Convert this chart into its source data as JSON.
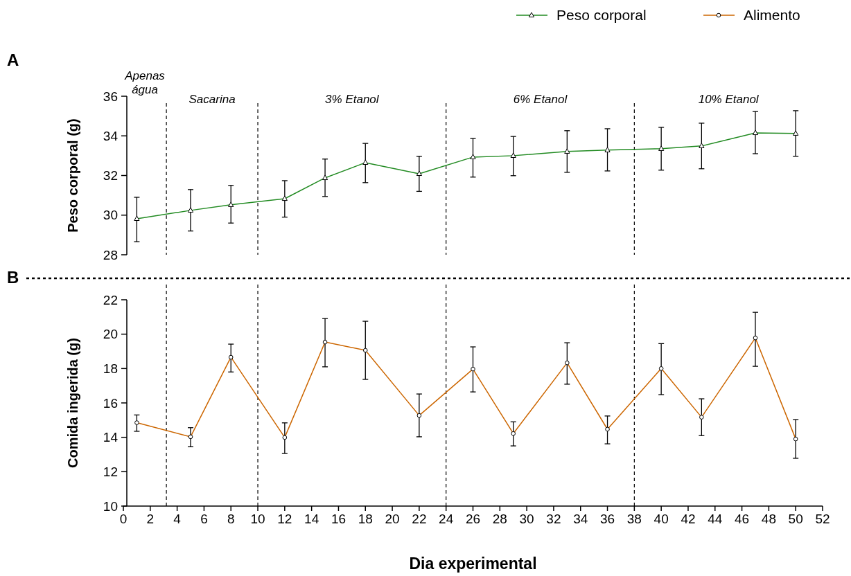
{
  "chart_data": [
    {
      "type": "line",
      "ylabel": "Peso corporal (g)",
      "annotations": [
        "A",
        "Apenas água",
        "Sacarina",
        "3% Etanol",
        "6% Etanol",
        "10% Etanol"
      ],
      "x": [
        1,
        5,
        8,
        12,
        15,
        18,
        22,
        26,
        29,
        33,
        36,
        40,
        43,
        47,
        50
      ],
      "xlim": [
        0,
        52
      ],
      "ylim": [
        28,
        36
      ],
      "yticks": [
        28,
        30,
        32,
        34,
        36
      ],
      "tick_labels": "y",
      "legend": "top right",
      "marker": "triangle",
      "line_style": "solid",
      "series": [
        {
          "name": "Peso corporal",
          "color": "#228b22",
          "values": [
            29.82,
            30.24,
            30.52,
            30.83,
            31.88,
            32.65,
            32.09,
            32.93,
            33.0,
            33.21,
            33.28,
            33.35,
            33.49,
            34.15,
            34.12
          ],
          "errors": [
            [
              28.66,
              30.9
            ],
            [
              29.2,
              31.29
            ],
            [
              29.6,
              31.5
            ],
            [
              29.9,
              31.74
            ],
            [
              30.94,
              32.83
            ],
            [
              31.64,
              33.62
            ],
            [
              31.2,
              32.97
            ],
            [
              31.92,
              33.87
            ],
            [
              31.99,
              33.97
            ],
            [
              32.16,
              34.26
            ],
            [
              32.23,
              34.36
            ],
            [
              32.27,
              34.43
            ],
            [
              32.34,
              34.64
            ],
            [
              33.1,
              35.23
            ],
            [
              32.97,
              35.27
            ]
          ]
        }
      ],
      "ref_lines": [
        {
          "axis": "x",
          "value": 3.2,
          "line_style": "dashed",
          "color": "#000000"
        },
        {
          "axis": "x",
          "value": 10,
          "line_style": "dashed",
          "color": "#000000"
        },
        {
          "axis": "x",
          "value": 24,
          "line_style": "dashed",
          "color": "#000000"
        },
        {
          "axis": "x",
          "value": 38,
          "line_style": "dashed",
          "color": "#000000"
        }
      ]
    },
    {
      "type": "line",
      "ylabel": "Comida ingerida (g)",
      "xlabel": "Dia experimental",
      "annotations": [
        "B"
      ],
      "x": [
        1,
        5,
        8,
        12,
        15,
        18,
        22,
        26,
        29,
        33,
        36,
        40,
        43,
        47,
        50
      ],
      "xlim": [
        0,
        52
      ],
      "xticks": [
        0,
        2,
        4,
        6,
        8,
        10,
        12,
        14,
        16,
        18,
        20,
        22,
        24,
        26,
        28,
        30,
        32,
        34,
        36,
        38,
        40,
        42,
        44,
        46,
        48,
        50,
        52
      ],
      "ylim": [
        10,
        22
      ],
      "yticks": [
        10,
        12,
        14,
        16,
        18,
        20,
        22
      ],
      "legend": "top right",
      "marker": "circle",
      "line_style": "solid",
      "series": [
        {
          "name": "Alimento",
          "color": "#cc6600",
          "values": [
            14.85,
            14.03,
            18.66,
            13.99,
            19.54,
            19.06,
            15.27,
            17.97,
            14.22,
            18.33,
            14.47,
            18.0,
            15.17,
            19.78,
            13.9
          ],
          "errors": [
            [
              14.35,
              15.3
            ],
            [
              13.45,
              14.56
            ],
            [
              17.8,
              19.42
            ],
            [
              13.06,
              14.84
            ],
            [
              18.1,
              20.91
            ],
            [
              17.37,
              20.75
            ],
            [
              14.03,
              16.52
            ],
            [
              16.64,
              19.26
            ],
            [
              13.5,
              14.9
            ],
            [
              17.09,
              19.5
            ],
            [
              13.62,
              15.24
            ],
            [
              16.48,
              19.45
            ],
            [
              14.1,
              16.24
            ],
            [
              18.13,
              21.27
            ],
            [
              12.78,
              15.03
            ]
          ]
        }
      ],
      "ref_lines": [
        {
          "axis": "x",
          "value": 3.2,
          "line_style": "dashed",
          "color": "#000000"
        },
        {
          "axis": "x",
          "value": 10,
          "line_style": "dashed",
          "color": "#000000"
        },
        {
          "axis": "x",
          "value": 24,
          "line_style": "dashed",
          "color": "#000000"
        },
        {
          "axis": "x",
          "value": 38,
          "line_style": "dashed",
          "color": "#000000"
        }
      ]
    }
  ]
}
